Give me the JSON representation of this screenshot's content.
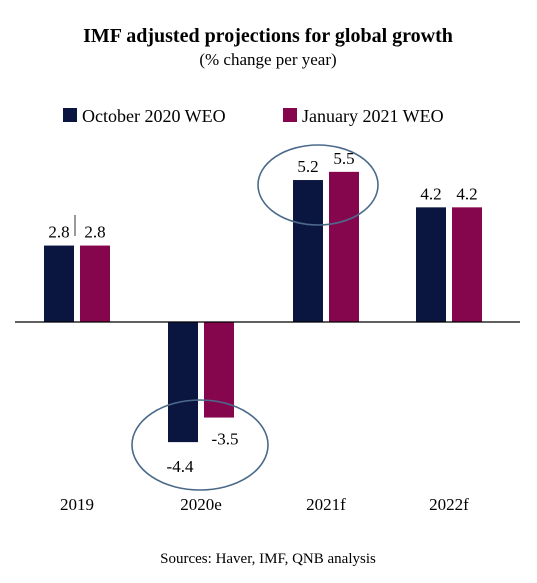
{
  "chart_data": {
    "type": "bar",
    "title": "IMF adjusted projections for global growth",
    "subtitle": "(% change per year)",
    "categories": [
      "2019",
      "2020e",
      "2021f",
      "2022f"
    ],
    "series": [
      {
        "name": "October 2020 WEO",
        "values": [
          2.8,
          -4.4,
          5.2,
          4.2
        ],
        "color": "#0b1640"
      },
      {
        "name": "January 2021 WEO",
        "values": [
          2.8,
          -3.5,
          5.5,
          4.2
        ],
        "color": "#86064e"
      }
    ],
    "value_labels": [
      [
        "2.8",
        "-4.4",
        "5.2",
        "4.2"
      ],
      [
        "2.8",
        "-3.5",
        "5.5",
        "4.2"
      ]
    ],
    "ylim": [
      -4.4,
      5.5
    ],
    "grid": false,
    "legend_position": "top",
    "highlight_circles": [
      "2020e",
      "2021f"
    ],
    "highlight_color": "#4b6a8a",
    "source": "Sources: Haver, IMF, QNB analysis"
  }
}
